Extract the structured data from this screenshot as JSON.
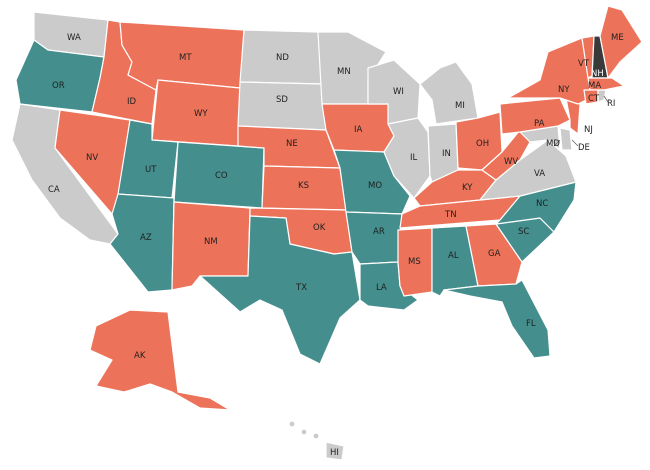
{
  "colors": {
    "orange": "#ec735a",
    "teal": "#458e8e",
    "gray": "#cbcbcb",
    "dark": "#3a3a3a"
  },
  "states": {
    "WA": {
      "label": "WA",
      "category": "gray"
    },
    "OR": {
      "label": "OR",
      "category": "teal"
    },
    "CA": {
      "label": "CA",
      "category": "gray"
    },
    "ID": {
      "label": "ID",
      "category": "orange"
    },
    "NV": {
      "label": "NV",
      "category": "orange"
    },
    "MT": {
      "label": "MT",
      "category": "orange"
    },
    "WY": {
      "label": "WY",
      "category": "orange"
    },
    "UT": {
      "label": "UT",
      "category": "teal"
    },
    "AZ": {
      "label": "AZ",
      "category": "teal"
    },
    "CO": {
      "label": "CO",
      "category": "teal"
    },
    "NM": {
      "label": "NM",
      "category": "orange"
    },
    "ND": {
      "label": "ND",
      "category": "gray"
    },
    "SD": {
      "label": "SD",
      "category": "gray"
    },
    "NE": {
      "label": "NE",
      "category": "orange"
    },
    "KS": {
      "label": "KS",
      "category": "orange"
    },
    "OK": {
      "label": "OK",
      "category": "orange"
    },
    "TX": {
      "label": "TX",
      "category": "teal"
    },
    "MN": {
      "label": "MN",
      "category": "gray"
    },
    "IA": {
      "label": "IA",
      "category": "orange"
    },
    "MO": {
      "label": "MO",
      "category": "teal"
    },
    "AR": {
      "label": "AR",
      "category": "teal"
    },
    "LA": {
      "label": "LA",
      "category": "teal"
    },
    "WI": {
      "label": "WI",
      "category": "gray"
    },
    "IL": {
      "label": "IL",
      "category": "gray"
    },
    "MI": {
      "label": "MI",
      "category": "gray"
    },
    "IN": {
      "label": "IN",
      "category": "gray"
    },
    "OH": {
      "label": "OH",
      "category": "orange"
    },
    "KY": {
      "label": "KY",
      "category": "orange"
    },
    "TN": {
      "label": "TN",
      "category": "orange"
    },
    "MS": {
      "label": "MS",
      "category": "orange"
    },
    "AL": {
      "label": "AL",
      "category": "teal"
    },
    "GA": {
      "label": "GA",
      "category": "orange"
    },
    "FL": {
      "label": "FL",
      "category": "teal"
    },
    "SC": {
      "label": "SC",
      "category": "teal"
    },
    "NC": {
      "label": "NC",
      "category": "teal"
    },
    "VA": {
      "label": "VA",
      "category": "gray"
    },
    "WV": {
      "label": "WV",
      "category": "orange"
    },
    "PA": {
      "label": "PA",
      "category": "orange"
    },
    "NY": {
      "label": "NY",
      "category": "orange"
    },
    "VT": {
      "label": "VT",
      "category": "orange"
    },
    "NH": {
      "label": "NH",
      "category": "dark"
    },
    "ME": {
      "label": "ME",
      "category": "orange"
    },
    "MA": {
      "label": "MA",
      "category": "orange"
    },
    "RI": {
      "label": "RI",
      "category": "gray"
    },
    "CT": {
      "label": "CT",
      "category": "orange"
    },
    "NJ": {
      "label": "NJ",
      "category": "orange"
    },
    "DE": {
      "label": "DE",
      "category": "gray"
    },
    "MD": {
      "label": "MD",
      "category": "gray"
    },
    "AK": {
      "label": "AK",
      "category": "orange"
    },
    "HI": {
      "label": "HI",
      "category": "gray"
    }
  }
}
